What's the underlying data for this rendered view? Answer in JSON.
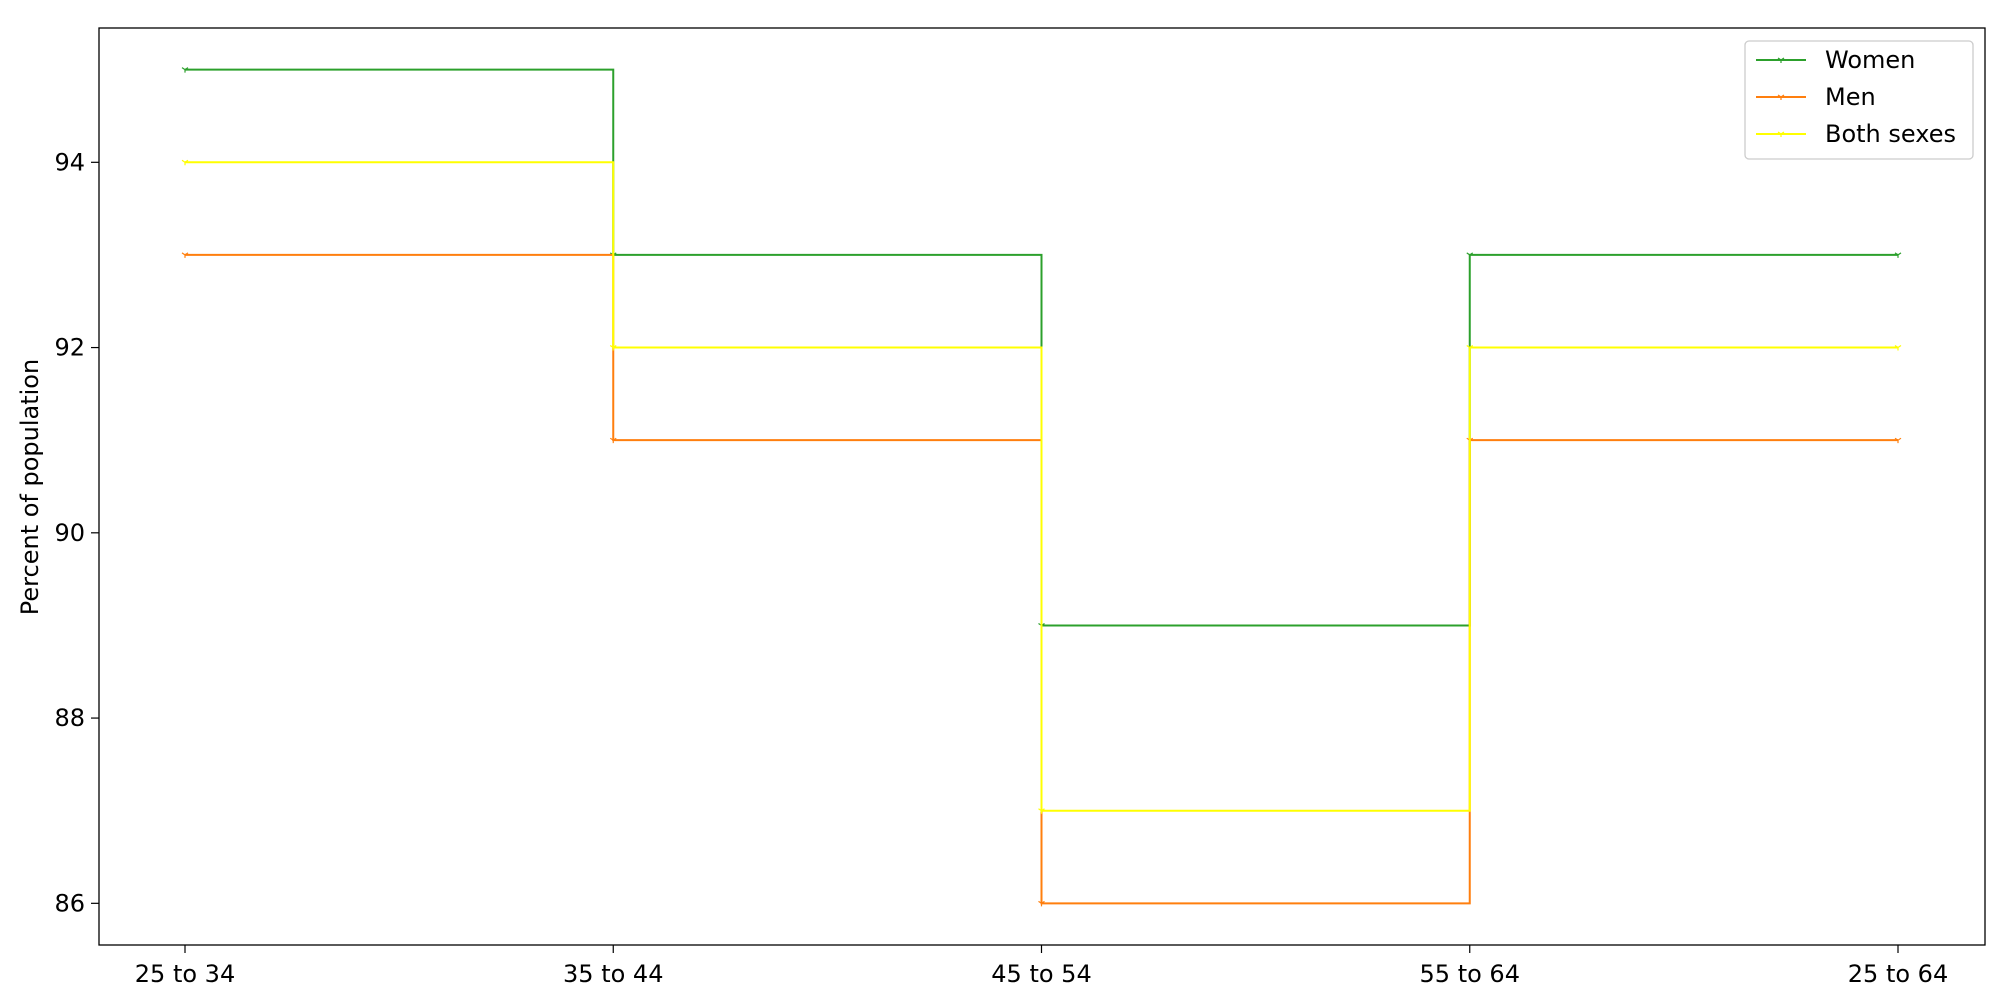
{
  "chart_data": {
    "type": "line",
    "step": "post",
    "categories": [
      "25 to 34",
      "35 to 44",
      "45 to 54",
      "55 to 64",
      "25 to 64"
    ],
    "xlabel": "",
    "ylabel": "Percent of population",
    "ylim": [
      85.55,
      95.45
    ],
    "yticks": [
      86,
      88,
      90,
      92,
      94
    ],
    "grid": false,
    "legend": "top-right",
    "series": [
      {
        "name": "Women",
        "color": "#2ca02c",
        "values": [
          95,
          93,
          89,
          93,
          93
        ]
      },
      {
        "name": "Men",
        "color": "#ff7f0e",
        "values": [
          93,
          91,
          86,
          91,
          91
        ]
      },
      {
        "name": "Both sexes",
        "color": "#ffff00",
        "values": [
          94,
          92,
          87,
          92,
          92
        ]
      }
    ]
  }
}
